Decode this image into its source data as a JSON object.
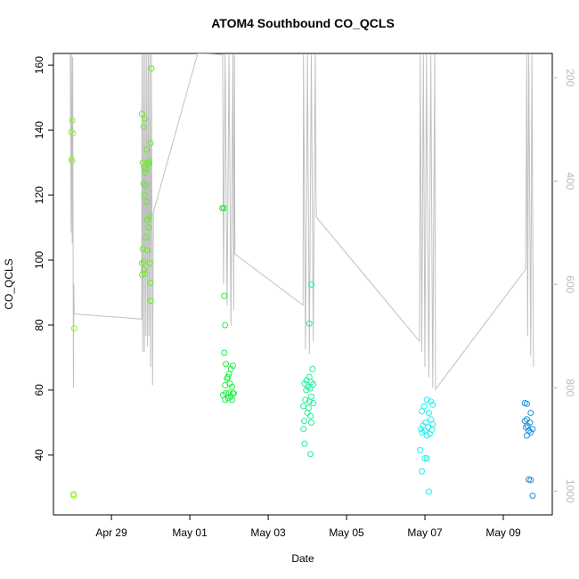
{
  "chart_data": {
    "type": "scatter",
    "title": "ATOM4 Southbound CO_QCLS",
    "xlabel": "Date",
    "ylabel": "CO_QCLS",
    "xlim": [
      -1.48,
      11.25
    ],
    "xticks": [
      {
        "value": 0,
        "label": "Apr 29"
      },
      {
        "value": 2,
        "label": "May 01"
      },
      {
        "value": 4,
        "label": "May 03"
      },
      {
        "value": 6,
        "label": "May 05"
      },
      {
        "value": 8,
        "label": "May 07"
      },
      {
        "value": 10,
        "label": "May 09"
      }
    ],
    "ylim": [
      21.6,
      163.6
    ],
    "yticks": [
      40,
      60,
      80,
      100,
      120,
      140,
      160
    ],
    "y2lim": [
      1046,
      153
    ],
    "y2ticks": [
      200,
      400,
      600,
      800,
      1000
    ],
    "y2color": "#bbbbbb",
    "series": [
      {
        "type": "line",
        "axis": "y2",
        "color": "#c0c0c0",
        "x": [
          -1.05,
          -1.03,
          -1.02,
          -1.0,
          -0.99,
          -0.97,
          -0.96,
          -0.95,
          0.77,
          0.78,
          0.8,
          0.82,
          0.84,
          0.86,
          0.88,
          0.9,
          0.92,
          0.94,
          0.96,
          0.98,
          1.0,
          1.02,
          1.05,
          1.07,
          2.2,
          2.84,
          2.86,
          2.9,
          2.95,
          3.0,
          3.05,
          3.1,
          3.12,
          3.14,
          3.15,
          4.89,
          4.9,
          4.95,
          5.0,
          5.05,
          5.1,
          5.15,
          5.2,
          5.22,
          5.23,
          7.86,
          7.88,
          7.92,
          7.96,
          8.0,
          8.04,
          8.1,
          8.15,
          8.2,
          8.25,
          8.27,
          10.57,
          10.6,
          10.62,
          10.65,
          10.7,
          10.73,
          10.77
        ],
        "values": [
          155,
          500,
          155,
          520,
          160,
          800,
          600,
          657,
          667,
          155,
          730,
          155,
          730,
          155,
          700,
          155,
          720,
          155,
          700,
          155,
          760,
          155,
          795,
          460,
          153,
          155,
          600,
          155,
          640,
          155,
          680,
          155,
          650,
          155,
          541,
          640,
          155,
          725,
          155,
          735,
          155,
          710,
          155,
          420,
          470,
          710,
          155,
          730,
          155,
          760,
          155,
          780,
          155,
          800,
          155,
          803,
          571,
          155,
          700,
          155,
          740,
          155,
          760
        ]
      },
      {
        "color": "#99ee33",
        "x": [
          -1.0,
          -1.03,
          -0.98,
          -1.02,
          -1.0,
          -0.95,
          -0.97,
          -0.96
        ],
        "values": [
          143,
          139.5,
          139,
          131,
          130.5,
          79,
          28,
          27.5
        ]
      },
      {
        "color": "#66ee22",
        "x": [
          0.78,
          0.85,
          0.82,
          1.02,
          1.0,
          0.9,
          0.8,
          0.83,
          0.88,
          0.96,
          0.93,
          0.86,
          0.82,
          0.87,
          0.85,
          0.9,
          0.97,
          0.92,
          0.95,
          0.88,
          0.8,
          0.92,
          0.82,
          0.78,
          0.98,
          0.83,
          0.78,
          0.85,
          0.99,
          1.0,
          0.96
        ],
        "values": [
          145,
          143.5,
          141,
          159,
          136,
          134,
          130,
          128.5,
          128,
          130.5,
          129.5,
          127,
          123.5,
          123,
          120,
          118,
          113.5,
          112.5,
          110,
          107,
          103.5,
          103,
          99.5,
          99,
          99,
          97,
          95.5,
          95.8,
          93,
          87.5,
          129.8
        ]
      },
      {
        "color": "#22ee44",
        "x": [
          2.83,
          2.87,
          2.88,
          2.9,
          2.88,
          2.92,
          3.1,
          3.05,
          2.97,
          3.0,
          2.95,
          3.02,
          2.9,
          3.08,
          2.92,
          3.0,
          3.1,
          2.85,
          3.05,
          2.9,
          3.08,
          2.98,
          3.12
        ],
        "values": [
          116,
          116,
          89,
          80,
          71.5,
          68,
          67.5,
          66.5,
          64,
          65,
          63.5,
          62,
          61.5,
          61,
          59,
          59,
          59,
          58.5,
          58,
          57,
          57,
          57.5,
          59
        ]
      },
      {
        "color": "#22ee99",
        "x": [
          5.1,
          5.05,
          5.13,
          5.05,
          4.98,
          5.1,
          4.93,
          5.15,
          5.02,
          4.97,
          5.07,
          5.1,
          4.95,
          5.05,
          5.15,
          4.9,
          5.03,
          5.0,
          5.08,
          4.92,
          5.1,
          4.9,
          4.93,
          5.08
        ],
        "values": [
          92.5,
          80.5,
          66.5,
          64,
          63,
          62.5,
          62,
          61.8,
          61,
          60,
          60.5,
          58,
          57,
          56.5,
          56,
          55,
          54.5,
          53,
          52,
          50.5,
          50,
          48,
          43.5,
          40.3
        ]
      },
      {
        "color": "#22eeee",
        "x": [
          8.05,
          8.15,
          7.98,
          8.2,
          8.1,
          7.92,
          8.15,
          8.02,
          7.95,
          8.2,
          7.9,
          8.08,
          8.0,
          8.18,
          7.93,
          8.12,
          8.05,
          7.88,
          8.0,
          8.05,
          7.92,
          8.1
        ],
        "values": [
          57,
          56.5,
          55,
          55.5,
          53,
          53.5,
          51,
          50,
          49,
          49.5,
          48,
          48.5,
          47.5,
          47.8,
          47,
          46.5,
          46,
          41.5,
          39,
          39,
          35,
          28.7
        ]
      },
      {
        "color": "#1e90dd",
        "x": [
          10.55,
          10.6,
          10.7,
          10.6,
          10.55,
          10.68,
          10.62,
          10.58,
          10.75,
          10.65,
          10.7,
          10.6,
          10.65,
          10.7,
          10.75
        ],
        "values": [
          56,
          55.8,
          53,
          51,
          50.5,
          50,
          49,
          48.5,
          48,
          47.5,
          47,
          46,
          32.5,
          32.3,
          27.5
        ]
      }
    ]
  }
}
